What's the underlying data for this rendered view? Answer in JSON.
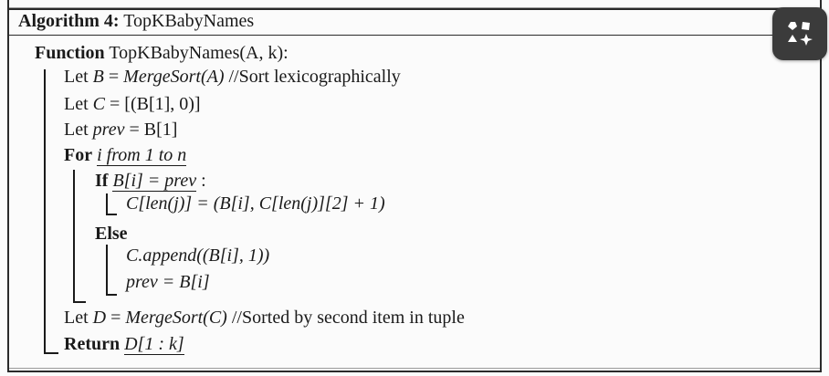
{
  "header": {
    "algo_label": "Algorithm 4:",
    "algo_name": "TopKBabyNames"
  },
  "lines": {
    "func_kw": "Function",
    "func_sig": "TopKBabyNames(A, k):",
    "l1_let": "Let",
    "l1_var": "B",
    "l1_eq": " = ",
    "l1_call": "MergeSort(A)",
    "l1_comment": " //Sort lexicographically",
    "l2_let": "Let",
    "l2_var": "C",
    "l2_rest": " = [(B[1], 0)]",
    "l3_let": "Let",
    "l3_var": "prev",
    "l3_rest": " = B[1]",
    "for_kw": "For",
    "for_rest": "i from 1 to n",
    "if_kw": "If",
    "if_cond": "B[i] = prev",
    "if_colon": " :",
    "assign": "C[len(j)] = (B[i], C[len(j)][2] + 1)",
    "else_kw": "Else",
    "append": "C.append((B[i], 1))",
    "prev_assign": "prev = B[i]",
    "l4_let": "Let",
    "l4_var": "D",
    "l4_eq": " = ",
    "l4_call": "MergeSort(C)",
    "l4_comment": " //Sorted by second item in tuple",
    "ret_kw": "Return",
    "ret_val": "D[1 : k]"
  },
  "icons": {
    "fab": "shapes-icon"
  }
}
